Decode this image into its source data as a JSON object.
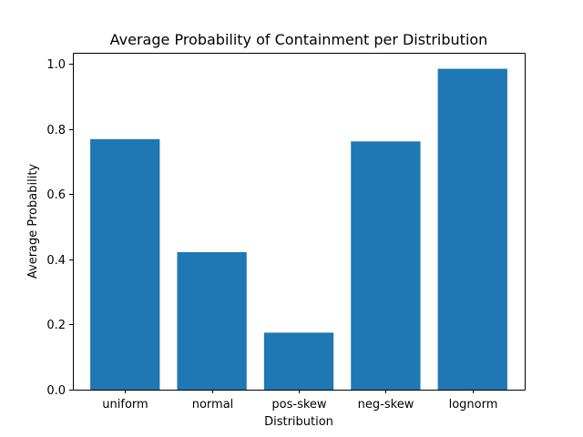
{
  "chart_data": {
    "type": "bar",
    "title": "Average Probability of Containment per Distribution",
    "xlabel": "Distribution",
    "ylabel": "Average Probability",
    "categories": [
      "uniform",
      "normal",
      "pos-skew",
      "neg-skew",
      "lognorm"
    ],
    "values": [
      0.769,
      0.422,
      0.175,
      0.762,
      0.985
    ],
    "ylim": [
      0,
      1.034
    ],
    "yticks": [
      0.0,
      0.2,
      0.4,
      0.6,
      0.8,
      1.0
    ],
    "ytick_labels": [
      "0.0",
      "0.2",
      "0.4",
      "0.6",
      "0.8",
      "1.0"
    ],
    "bar_color": "#1f77b4",
    "grid": false,
    "legend": "none"
  }
}
